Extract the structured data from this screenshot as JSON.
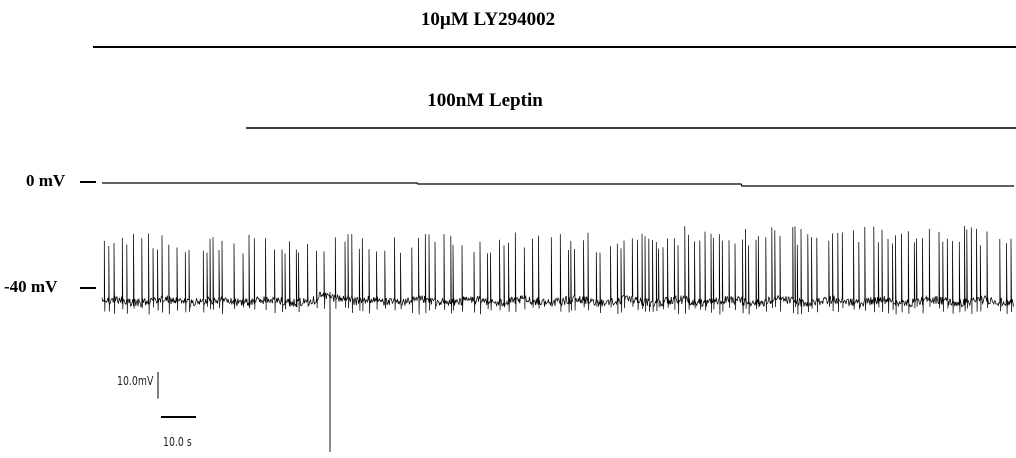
{
  "chart_data": {
    "type": "line",
    "title": "",
    "xlabel": "",
    "ylabel": "",
    "ylim": [
      -65,
      5
    ],
    "treatments": [
      {
        "label": "10µM LY294002",
        "start_s": 0,
        "end_s": 160
      },
      {
        "label": "100nM Leptin",
        "start_s": 25,
        "end_s": 160
      }
    ],
    "reference_levels": [
      {
        "label": "0 mV",
        "value": 0
      },
      {
        "label": "-40 mV",
        "value": -40
      }
    ],
    "scale_bars": {
      "voltage": {
        "label": "10.0mV",
        "value": 10
      },
      "time": {
        "label": "10.0 s",
        "value": 10
      }
    },
    "trace": {
      "duration_s": 160,
      "resting_potential_mv": -45,
      "spike_peak_mv": -23,
      "event_time_s": 40
    }
  }
}
